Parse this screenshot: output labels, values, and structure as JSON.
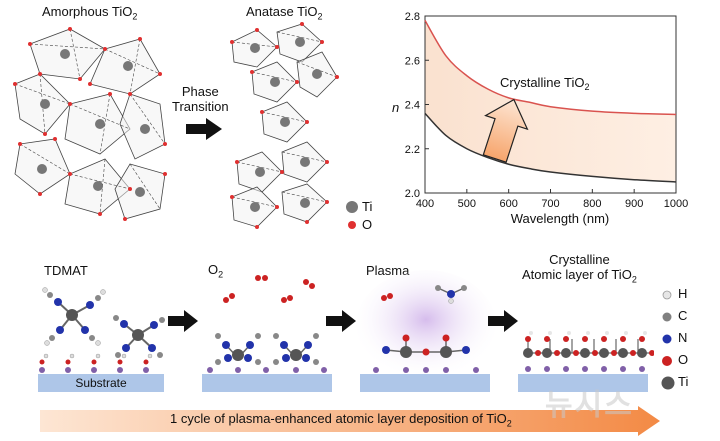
{
  "top": {
    "amorphous_label": "Amorphous TiO",
    "amorphous_sub": "2",
    "anatase_label": "Anatase TiO",
    "anatase_sub": "2",
    "phase_line1": "Phase",
    "phase_line2": "Transition",
    "legend_ti": "Ti",
    "legend_o": "O"
  },
  "chart_data": {
    "type": "line",
    "title": "",
    "xlabel": "Wavelength (nm)",
    "ylabel": "n",
    "xlim": [
      400,
      1000
    ],
    "ylim": [
      2.0,
      2.8
    ],
    "xticks": [
      400,
      500,
      600,
      700,
      800,
      900,
      1000
    ],
    "yticks": [
      2.0,
      2.2,
      2.4,
      2.6,
      2.8
    ],
    "annotation": "Crystalline TiO",
    "annotation_sub": "2",
    "series": [
      {
        "name": "Crystalline TiO2",
        "color": "#d9534f",
        "x": [
          400,
          450,
          500,
          550,
          600,
          650,
          700,
          800,
          900,
          1000
        ],
        "values": [
          2.78,
          2.62,
          2.53,
          2.47,
          2.43,
          2.41,
          2.39,
          2.37,
          2.36,
          2.355
        ]
      },
      {
        "name": "Amorphous TiO2",
        "color": "#333333",
        "x": [
          400,
          450,
          500,
          550,
          600,
          650,
          700,
          800,
          900,
          1000
        ],
        "values": [
          2.36,
          2.26,
          2.2,
          2.16,
          2.13,
          2.11,
          2.095,
          2.075,
          2.06,
          2.05
        ]
      }
    ]
  },
  "bottom": {
    "tdmat": "TDMAT",
    "o2": "O",
    "o2_sub": "2",
    "plasma": "Plasma",
    "crystalline_line1": "Crystalline",
    "crystalline_line2": "Atomic layer of TiO",
    "crystalline_sub": "2",
    "substrate": "Substrate",
    "legend": [
      "H",
      "C",
      "N",
      "O",
      "Ti"
    ],
    "cycle_text": "1 cycle of plasma-enhanced atomic layer deposition of TiO",
    "cycle_sub": "2",
    "watermark": "뉴시스"
  },
  "colors": {
    "H": "#e6e6e6",
    "C": "#808080",
    "N": "#2233aa",
    "O": "#cc2222",
    "Ti": "#555555",
    "substrate": "#aec6e8",
    "arrow_orange": "#f6a36a",
    "red_line": "#d9534f"
  }
}
